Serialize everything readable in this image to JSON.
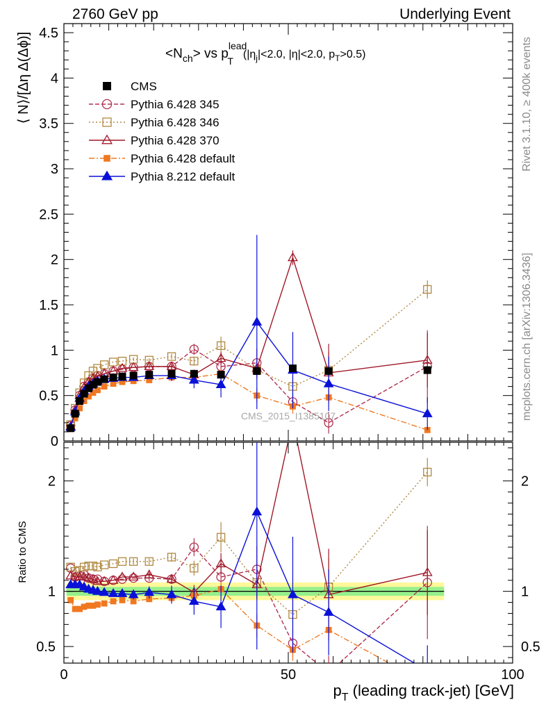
{
  "header": {
    "left": "2760 GeV pp",
    "right": "Underlying Event"
  },
  "title": {
    "main": "<N",
    "main_sub": "ch",
    "main_close": "> vs p",
    "pt_sup": "lead",
    "pt_sub": "T",
    "cuts_a": "(|η",
    "cuts_a_sub": "j",
    "cuts_b": "|<2.0, |η|<2.0, p",
    "cuts_b_sub": "T",
    "cuts_c": ">0.5)"
  },
  "side_labels": {
    "rivet": "Rivet 3.1.10, ≥ 400k events",
    "mcplots": "mcplots.cern.ch [arXiv:1306.3436]"
  },
  "watermark": "CMS_2015_I1385107",
  "axes": {
    "main_ylabel": "⟨ N⟩/[Δη Δ(Δϕ)]",
    "ratio_ylabel": "Ratio to CMS",
    "xlabel_p": "p",
    "xlabel_sub": "T",
    "xlabel_rest": " (leading track-jet) [GeV]"
  },
  "chart_data": {
    "type": "line",
    "xlim": [
      0,
      100
    ],
    "main_ylim": [
      0,
      4.6
    ],
    "ratio_ylim": [
      0.35,
      2.35
    ],
    "x_ticks": [
      0,
      50,
      100
    ],
    "main_y_ticks": [
      0,
      0.5,
      1,
      1.5,
      2,
      2.5,
      3,
      3.5,
      4,
      4.5
    ],
    "ratio_y_ticks": [
      0.5,
      1,
      2
    ],
    "x": [
      1.5,
      2.5,
      3.5,
      4.5,
      5.5,
      6.5,
      7.5,
      9,
      11,
      13,
      15.5,
      19,
      24,
      29,
      35,
      43,
      51,
      59,
      81
    ],
    "reference": {
      "name": "CMS",
      "values": [
        0.14,
        0.3,
        0.44,
        0.52,
        0.58,
        0.62,
        0.65,
        0.68,
        0.7,
        0.71,
        0.72,
        0.73,
        0.74,
        0.74,
        0.73,
        0.77,
        0.8,
        0.77,
        0.78
      ],
      "band_inner": 0.04,
      "band_outer": 0.08
    },
    "series": [
      {
        "name": "Pythia 6.428 345",
        "color": "#b03050",
        "dash": "6,3",
        "marker": "circle-open",
        "values": [
          0.17,
          0.34,
          0.5,
          0.6,
          0.65,
          0.69,
          0.72,
          0.74,
          0.77,
          0.79,
          0.81,
          0.82,
          0.82,
          1.01,
          0.82,
          0.86,
          0.43,
          0.2,
          0.82
        ],
        "errors": [
          0.01,
          0.01,
          0.01,
          0.01,
          0.01,
          0.01,
          0.01,
          0.01,
          0.01,
          0.01,
          0.01,
          0.02,
          0.03,
          0.06,
          0.08,
          0.16,
          0.1,
          0.12,
          0.4
        ],
        "ratio": [
          1.21,
          1.13,
          1.14,
          1.15,
          1.12,
          1.11,
          1.11,
          1.09,
          1.1,
          1.11,
          1.12,
          1.12,
          1.11,
          1.4,
          1.13,
          1.2,
          0.53,
          0.26,
          1.08
        ]
      },
      {
        "name": "Pythia 6.428 346",
        "color": "#b08840",
        "dash": "2,3",
        "marker": "square-open",
        "values": [
          0.18,
          0.36,
          0.53,
          0.64,
          0.72,
          0.77,
          0.8,
          0.84,
          0.87,
          0.88,
          0.9,
          0.89,
          0.93,
          0.88,
          1.05,
          0.78,
          0.6,
          0.78,
          1.67
        ],
        "errors": [
          0.01,
          0.01,
          0.01,
          0.01,
          0.01,
          0.01,
          0.01,
          0.01,
          0.01,
          0.01,
          0.02,
          0.02,
          0.03,
          0.05,
          0.1,
          0.1,
          0.12,
          0.2,
          0.1
        ],
        "ratio": [
          1.22,
          1.18,
          1.19,
          1.22,
          1.23,
          1.23,
          1.22,
          1.24,
          1.25,
          1.27,
          1.27,
          1.27,
          1.31,
          1.21,
          1.49,
          1.08,
          0.79,
          1.04,
          2.08
        ]
      },
      {
        "name": "Pythia 6.428 370",
        "color": "#a01828",
        "dash": "",
        "marker": "triangle-open",
        "values": [
          0.16,
          0.34,
          0.5,
          0.59,
          0.65,
          0.69,
          0.71,
          0.74,
          0.77,
          0.8,
          0.81,
          0.82,
          0.82,
          0.73,
          0.91,
          0.8,
          2.02,
          0.75,
          0.89
        ],
        "errors": [
          0.01,
          0.01,
          0.01,
          0.01,
          0.01,
          0.01,
          0.01,
          0.01,
          0.01,
          0.01,
          0.01,
          0.02,
          0.03,
          0.05,
          0.07,
          0.1,
          0.08,
          0.32,
          0.3
        ],
        "ratio": [
          1.14,
          1.13,
          1.13,
          1.13,
          1.12,
          1.11,
          1.09,
          1.09,
          1.1,
          1.13,
          1.13,
          1.15,
          1.11,
          0.99,
          1.25,
          1.06,
          2.55,
          0.97,
          1.17
        ]
      },
      {
        "name": "Pythia 6.428 default",
        "color": "#f07820",
        "dash": "8,3,2,3",
        "marker": "square-filled",
        "values": [
          0.13,
          0.25,
          0.36,
          0.44,
          0.49,
          0.53,
          0.56,
          0.6,
          0.63,
          0.65,
          0.66,
          0.67,
          0.7,
          0.7,
          0.74,
          0.5,
          0.38,
          0.48,
          0.12
        ],
        "errors": [
          0.01,
          0.01,
          0.01,
          0.01,
          0.01,
          0.01,
          0.01,
          0.01,
          0.01,
          0.01,
          0.01,
          0.02,
          0.02,
          0.04,
          0.05,
          0.08,
          0.08,
          0.06,
          0.02
        ],
        "ratio": [
          0.92,
          0.84,
          0.84,
          0.86,
          0.87,
          0.87,
          0.88,
          0.89,
          0.91,
          0.92,
          0.91,
          0.93,
          0.94,
          0.96,
          1.02,
          0.69,
          0.47,
          0.65,
          0.16
        ]
      },
      {
        "name": "Pythia 8.212 default",
        "color": "#0a10d8",
        "dash": "",
        "marker": "triangle-filled",
        "values": [
          0.15,
          0.32,
          0.47,
          0.55,
          0.6,
          0.63,
          0.66,
          0.68,
          0.69,
          0.7,
          0.7,
          0.72,
          0.72,
          0.67,
          0.62,
          1.31,
          0.78,
          0.63,
          0.3
        ],
        "errors": [
          0.01,
          0.01,
          0.01,
          0.01,
          0.01,
          0.01,
          0.01,
          0.01,
          0.02,
          0.02,
          0.03,
          0.04,
          0.06,
          0.09,
          0.14,
          0.96,
          0.42,
          0.3,
          0.18
        ],
        "ratio": [
          1.06,
          1.06,
          1.06,
          1.04,
          1.02,
          1.01,
          1.0,
          0.99,
          0.98,
          0.98,
          0.97,
          0.99,
          0.97,
          0.91,
          0.86,
          1.72,
          0.97,
          0.81,
          0.28
        ]
      }
    ]
  }
}
